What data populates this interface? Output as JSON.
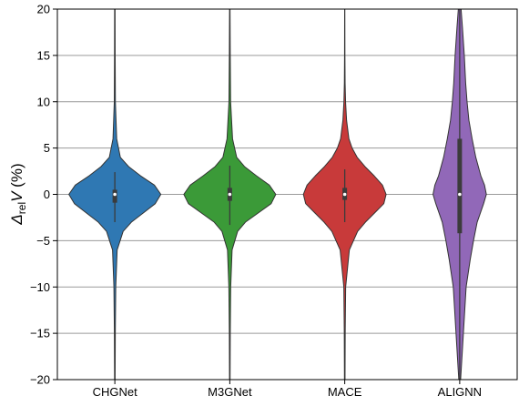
{
  "chart_data": {
    "type": "violin",
    "ylabel": {
      "symbol": "Δ",
      "subscript": "rel",
      "variable": "V",
      "unit": " (%)"
    },
    "ylim": [
      -20,
      20
    ],
    "yticks": [
      -20,
      -15,
      -10,
      -5,
      0,
      5,
      10,
      15,
      20
    ],
    "ytick_labels": [
      "−20",
      "−15",
      "−10",
      "−5",
      "0",
      "5",
      "10",
      "15",
      "20"
    ],
    "categories": [
      "CHGNet",
      "M3GNet",
      "MACE",
      "ALIGNN"
    ],
    "grid": "horizontal",
    "series": [
      {
        "category": "CHGNet",
        "color": "#2f78b3",
        "median": 0.0,
        "q1": -0.9,
        "q3": 0.5,
        "whisker_low": -3.0,
        "whisker_high": 2.4,
        "density": [
          [
            -20,
            0.006
          ],
          [
            -15,
            0.01
          ],
          [
            -10,
            0.02
          ],
          [
            -6,
            0.05
          ],
          [
            -4,
            0.18
          ],
          [
            -3,
            0.36
          ],
          [
            -2,
            0.62
          ],
          [
            -1,
            0.88
          ],
          [
            0,
            1.0
          ],
          [
            1,
            0.86
          ],
          [
            2,
            0.56
          ],
          [
            3,
            0.3
          ],
          [
            4,
            0.12
          ],
          [
            6,
            0.04
          ],
          [
            10,
            0.012
          ],
          [
            15,
            0.007
          ],
          [
            20,
            0.005
          ]
        ]
      },
      {
        "category": "M3GNet",
        "color": "#3b9a38",
        "median": 0.0,
        "q1": -0.7,
        "q3": 0.7,
        "whisker_low": -3.3,
        "whisker_high": 3.1,
        "density": [
          [
            -20,
            0.006
          ],
          [
            -15,
            0.01
          ],
          [
            -10,
            0.02
          ],
          [
            -6,
            0.05
          ],
          [
            -4,
            0.17
          ],
          [
            -3,
            0.34
          ],
          [
            -2,
            0.62
          ],
          [
            -1,
            0.9
          ],
          [
            0,
            1.0
          ],
          [
            1,
            0.86
          ],
          [
            2,
            0.58
          ],
          [
            3,
            0.32
          ],
          [
            4,
            0.15
          ],
          [
            6,
            0.06
          ],
          [
            10,
            0.018
          ],
          [
            15,
            0.01
          ],
          [
            20,
            0.005
          ]
        ]
      },
      {
        "category": "MACE",
        "color": "#c83a3a",
        "median": 0.0,
        "q1": -0.6,
        "q3": 0.7,
        "whisker_low": -3.0,
        "whisker_high": 2.7,
        "density": [
          [
            -20,
            0.006
          ],
          [
            -15,
            0.01
          ],
          [
            -10,
            0.02
          ],
          [
            -6,
            0.1
          ],
          [
            -4,
            0.28
          ],
          [
            -3,
            0.45
          ],
          [
            -2,
            0.65
          ],
          [
            -1,
            0.85
          ],
          [
            0,
            0.9
          ],
          [
            1,
            0.82
          ],
          [
            2,
            0.64
          ],
          [
            3,
            0.44
          ],
          [
            4,
            0.27
          ],
          [
            5,
            0.16
          ],
          [
            6,
            0.09
          ],
          [
            8,
            0.04
          ],
          [
            10,
            0.018
          ],
          [
            12,
            0.008
          ],
          [
            15,
            0.004
          ],
          [
            20,
            0.002
          ]
        ]
      },
      {
        "category": "ALIGNN",
        "color": "#9168b8",
        "median": 0.0,
        "q1": -4.2,
        "q3": 6.0,
        "whisker_low": -20.0,
        "whisker_high": 20.0,
        "density": [
          [
            -20,
            0.02
          ],
          [
            -15,
            0.08
          ],
          [
            -10,
            0.14
          ],
          [
            -7,
            0.23
          ],
          [
            -5,
            0.3
          ],
          [
            -3,
            0.38
          ],
          [
            -1,
            0.52
          ],
          [
            0,
            0.58
          ],
          [
            1,
            0.54
          ],
          [
            2,
            0.46
          ],
          [
            4,
            0.35
          ],
          [
            6,
            0.27
          ],
          [
            8,
            0.2
          ],
          [
            10,
            0.16
          ],
          [
            12,
            0.13
          ],
          [
            15,
            0.1
          ],
          [
            18,
            0.06
          ],
          [
            20,
            0.03
          ]
        ]
      }
    ]
  }
}
